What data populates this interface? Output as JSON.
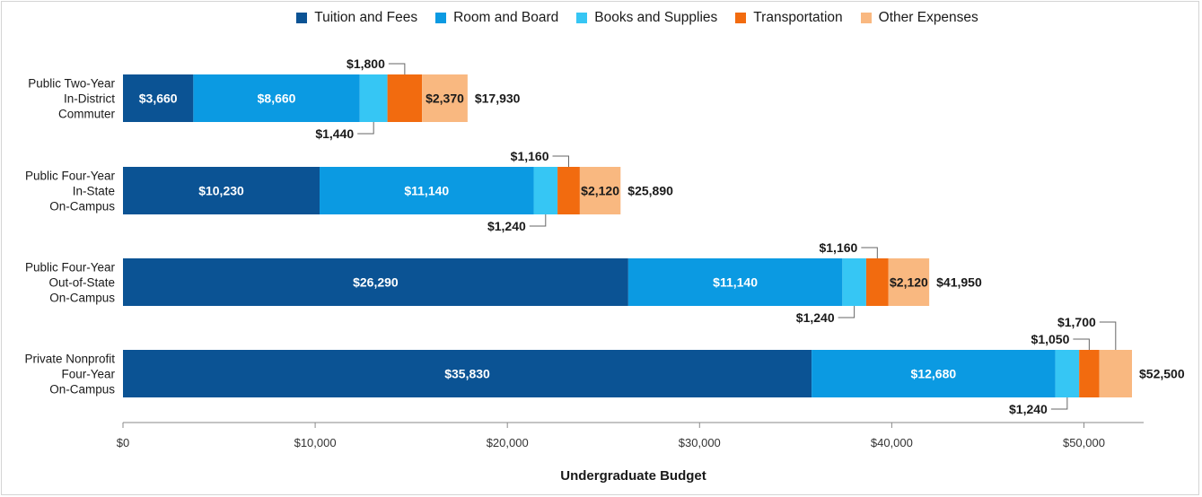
{
  "chart_data": {
    "type": "bar",
    "orientation": "horizontal",
    "stacked": true,
    "xlabel": "Undergraduate Budget",
    "xlim": [
      0,
      52500
    ],
    "xticks": [
      0,
      10000,
      20000,
      30000,
      40000,
      50000
    ],
    "xtick_labels": [
      "$0",
      "$10,000",
      "$20,000",
      "$30,000",
      "$40,000",
      "$50,000"
    ],
    "legend_position": "top-center",
    "categories": [
      [
        "Public Two-Year",
        "In-District",
        "Commuter"
      ],
      [
        "Public Four-Year",
        "In-State",
        "On-Campus"
      ],
      [
        "Public Four-Year",
        "Out-of-State",
        "On-Campus"
      ],
      [
        "Private Nonprofit",
        "Four-Year",
        "On-Campus"
      ]
    ],
    "series": [
      {
        "name": "Tuition and Fees",
        "color": "#0b5394",
        "values": [
          3660,
          10230,
          26290,
          35830
        ],
        "labels": [
          "$3,660",
          "$10,230",
          "$26,290",
          "$35,830"
        ],
        "label_mode": [
          "inside",
          "inside",
          "inside",
          "inside"
        ]
      },
      {
        "name": "Room and Board",
        "color": "#0b9ae2",
        "values": [
          8660,
          11140,
          11140,
          12680
        ],
        "labels": [
          "$8,660",
          "$11,140",
          "$11,140",
          "$12,680"
        ],
        "label_mode": [
          "inside",
          "inside",
          "inside",
          "inside"
        ]
      },
      {
        "name": "Books and Supplies",
        "color": "#36c6f4",
        "values": [
          1440,
          1240,
          1240,
          1240
        ],
        "labels": [
          "$1,440",
          "$1,240",
          "$1,240",
          "$1,240"
        ],
        "label_mode": [
          "below",
          "below",
          "below",
          "below"
        ]
      },
      {
        "name": "Transportation",
        "color": "#f26b0f",
        "values": [
          1800,
          1160,
          1160,
          1050
        ],
        "labels": [
          "$1,800",
          "$1,160",
          "$1,160",
          "$1,050"
        ],
        "label_mode": [
          "above",
          "above",
          "above",
          "above"
        ]
      },
      {
        "name": "Other Expenses",
        "color": "#f9b880",
        "values": [
          2370,
          2120,
          2120,
          1700
        ],
        "labels": [
          "$2,370",
          "$2,120",
          "$2,120",
          "$1,700"
        ],
        "label_mode": [
          "inside",
          "inside",
          "inside",
          "above-high"
        ]
      }
    ],
    "totals": [
      17930,
      25890,
      41950,
      52500
    ],
    "total_labels": [
      "$17,930",
      "$25,890",
      "$41,950",
      "$52,500"
    ]
  }
}
